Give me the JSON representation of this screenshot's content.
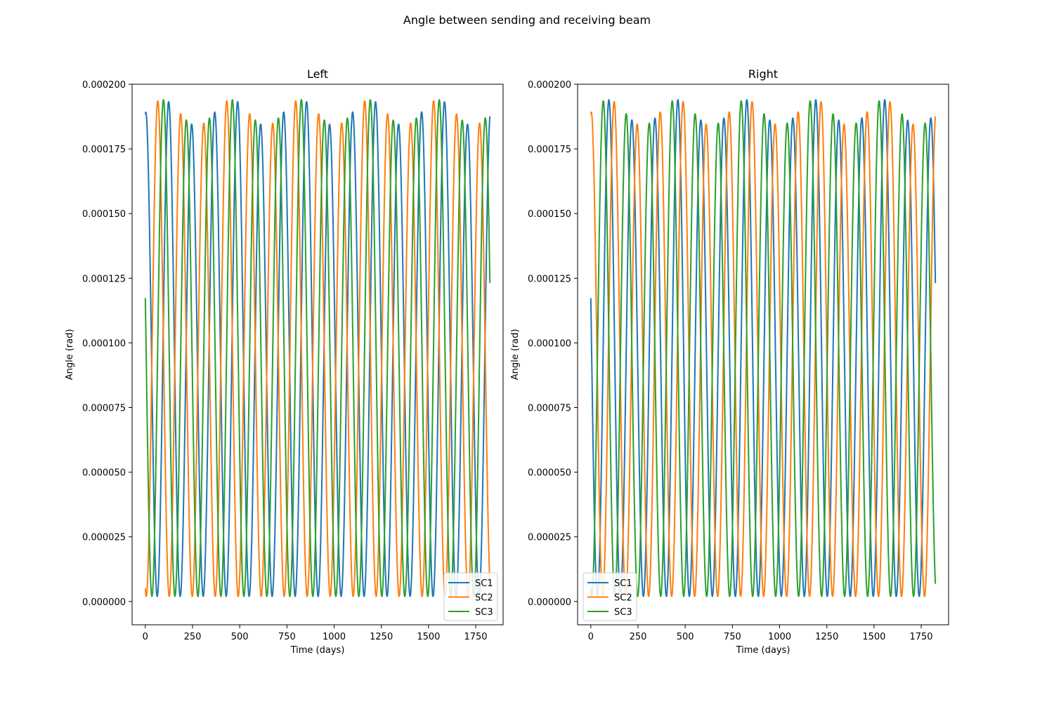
{
  "figure": {
    "suptitle": "Angle between sending and receiving beam"
  },
  "chart_data": [
    {
      "type": "line",
      "title": "Left",
      "xlabel": "Time (days)",
      "ylabel": "Angle (rad)",
      "xlim": [
        -70,
        1895
      ],
      "ylim": [
        -9e-06,
        0.0002
      ],
      "xticks": [
        0,
        250,
        500,
        750,
        1000,
        1250,
        1500,
        1750
      ],
      "xtick_labels": [
        "0",
        "250",
        "500",
        "750",
        "1000",
        "1250",
        "1500",
        "1750"
      ],
      "yticks": [
        0,
        2.5e-05,
        5e-05,
        7.5e-05,
        0.0001,
        0.000125,
        0.00015,
        0.000175,
        0.0002
      ],
      "ytick_labels": [
        "0.000000",
        "0.000025",
        "0.000050",
        "0.000075",
        "0.000100",
        "0.000125",
        "0.000150",
        "0.000175",
        "0.000200"
      ],
      "grid": false,
      "legend_position": "lower right",
      "x_range": [
        0,
        1825
      ],
      "series": [
        {
          "name": "SC1",
          "color": "#1f77b4",
          "period_days": 121.75,
          "phase_days": 63,
          "rising_at_start": false,
          "mean": 9.55e-05,
          "amp": 9.35e-05,
          "mod_amp": 2.5e-06,
          "mod_period": 365
        },
        {
          "name": "SC2",
          "color": "#ff7f0e",
          "period_days": 121.75,
          "phase_days": 5,
          "rising_at_start": true,
          "mean": 9.55e-05,
          "amp": 9.35e-05,
          "mod_amp": 2.5e-06,
          "mod_period": 365
        },
        {
          "name": "SC3",
          "color": "#2ca02c",
          "period_days": 121.75,
          "phase_days": 35,
          "rising_at_start": true,
          "mean": 9.55e-05,
          "amp": 9.35e-05,
          "mod_amp": 2.5e-06,
          "mod_period": 365
        }
      ]
    },
    {
      "type": "line",
      "title": "Right",
      "xlabel": "Time (days)",
      "ylabel": "Angle (rad)",
      "xlim": [
        -70,
        1895
      ],
      "ylim": [
        -9e-06,
        0.0002
      ],
      "xticks": [
        0,
        250,
        500,
        750,
        1000,
        1250,
        1500,
        1750
      ],
      "xtick_labels": [
        "0",
        "250",
        "500",
        "750",
        "1000",
        "1250",
        "1500",
        "1750"
      ],
      "yticks": [
        0,
        2.5e-05,
        5e-05,
        7.5e-05,
        0.0001,
        0.000125,
        0.00015,
        0.000175,
        0.0002
      ],
      "ytick_labels": [
        "0.000000",
        "0.000025",
        "0.000050",
        "0.000075",
        "0.000100",
        "0.000125",
        "0.000150",
        "0.000175",
        "0.000200"
      ],
      "grid": false,
      "legend_position": "lower left",
      "x_range": [
        0,
        1825
      ],
      "series": [
        {
          "name": "SC1",
          "color": "#1f77b4",
          "period_days": 121.75,
          "phase_days": 35,
          "rising_at_start": true,
          "mean": 9.55e-05,
          "amp": 9.35e-05,
          "mod_amp": 2.5e-06,
          "mod_period": 365
        },
        {
          "name": "SC2",
          "color": "#ff7f0e",
          "period_days": 121.75,
          "phase_days": 63,
          "rising_at_start": false,
          "mean": 9.55e-05,
          "amp": 9.35e-05,
          "mod_amp": 2.5e-06,
          "mod_period": 365
        },
        {
          "name": "SC3",
          "color": "#2ca02c",
          "period_days": 121.75,
          "phase_days": 5,
          "rising_at_start": true,
          "mean": 9.55e-05,
          "amp": 9.35e-05,
          "mod_amp": 2.5e-06,
          "mod_period": 365
        }
      ]
    }
  ]
}
